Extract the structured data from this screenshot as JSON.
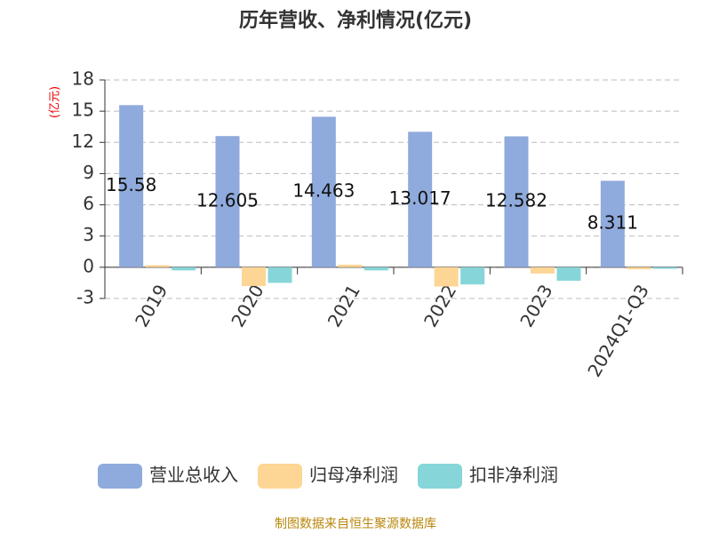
{
  "chart_data": {
    "type": "bar",
    "title": "历年营收、净利情况(亿元)",
    "y_label": "(亿元)",
    "source": "制图数据来自恒生聚源数据库",
    "categories": [
      "2019",
      "2020",
      "2021",
      "2022",
      "2023",
      "2024Q1-Q3"
    ],
    "series": [
      {
        "name": "营业总收入",
        "color": "#8faadc",
        "values": [
          15.58,
          12.605,
          14.463,
          13.017,
          12.582,
          8.311
        ]
      },
      {
        "name": "归母净利润",
        "color": "#fdd595",
        "values": [
          0.2,
          -1.8,
          0.25,
          -1.85,
          -0.6,
          -0.2
        ]
      },
      {
        "name": "扣非净利润",
        "color": "#86d5d8",
        "values": [
          -0.3,
          -1.5,
          -0.3,
          -1.65,
          -1.3,
          -0.15
        ]
      }
    ],
    "ylim": [
      -3,
      18
    ],
    "yticks": [
      -3,
      0,
      3,
      6,
      9,
      12,
      15,
      18
    ],
    "grid": true
  }
}
